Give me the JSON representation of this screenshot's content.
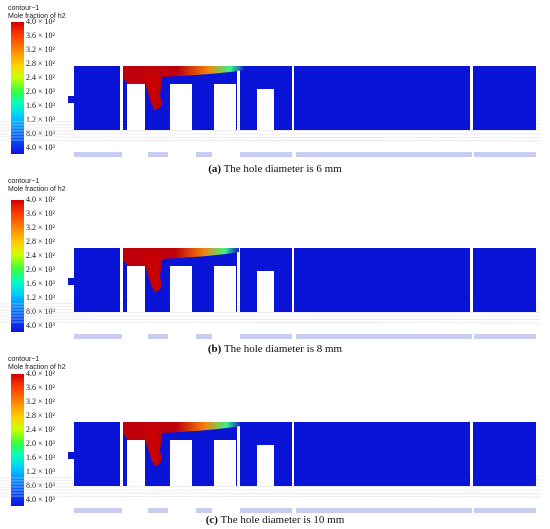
{
  "legend": {
    "header": "contour−1",
    "subtitle": "Mole fraction of h2",
    "ticks": [
      "4.0 × 10²",
      "3.6 × 10²",
      "3.2 × 10²",
      "2.8 × 10²",
      "2.4 × 10²",
      "2.0 × 10³",
      "1.6 × 10³",
      "1.2 × 10³",
      "8.0 × 10³",
      "4.0 × 10³"
    ]
  },
  "panels": [
    {
      "label": "(a)",
      "text": "The hole diameter is 6 mm"
    },
    {
      "label": "(b)",
      "text": "The hole diameter is 8 mm"
    },
    {
      "label": "(c)",
      "text": "The hole diameter is 10 mm"
    }
  ],
  "colors": {
    "background_field": "#0a14d6",
    "plume_core": "#c80000",
    "plume_mid": "#ff8a00",
    "plume_edge": "#3cff80"
  }
}
